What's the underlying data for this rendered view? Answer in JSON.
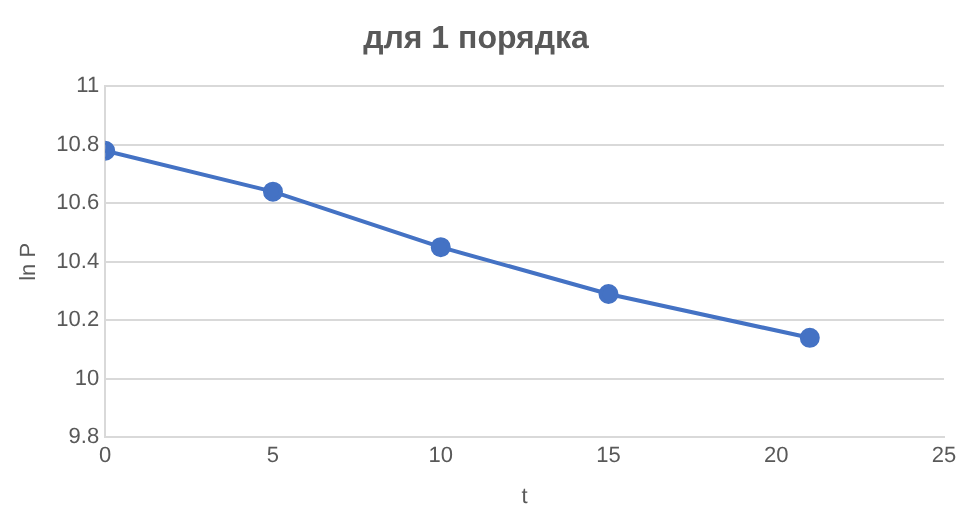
{
  "chart_data": {
    "type": "line",
    "title": "для 1 порядка",
    "xlabel": "t",
    "ylabel": "ln P",
    "x": [
      0,
      5,
      10,
      15,
      21
    ],
    "series": [
      {
        "color": "#4472c4",
        "values": [
          10.78,
          10.64,
          10.45,
          10.29,
          10.14
        ]
      }
    ],
    "xlim": [
      0,
      25
    ],
    "xticks": [
      0,
      5,
      10,
      15,
      20,
      25
    ],
    "ylim": [
      9.8,
      11
    ],
    "yticks": [
      {
        "value": 9.8,
        "label": "9.8"
      },
      {
        "value": 10,
        "label": "10"
      },
      {
        "value": 10.2,
        "label": "10.2"
      },
      {
        "value": 10.4,
        "label": "10.4"
      },
      {
        "value": 10.6,
        "label": "10.6"
      },
      {
        "value": 10.8,
        "label": "10.8"
      },
      {
        "value": 11,
        "label": "11"
      }
    ],
    "grid": "y",
    "marker": "circle",
    "line_style": "solid"
  }
}
